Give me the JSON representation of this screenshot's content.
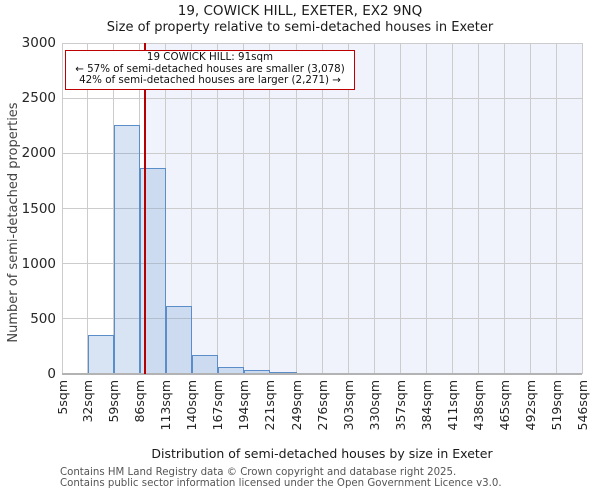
{
  "header": {
    "title": "19, COWICK HILL, EXETER, EX2 9NQ",
    "subtitle": "Size of property relative to semi-detached houses in Exeter"
  },
  "annotation": {
    "line1": "19 COWICK HILL: 91sqm",
    "line2": "← 57% of semi-detached houses are smaller (3,078)",
    "line3": "42% of semi-detached houses are larger (2,271) →"
  },
  "footer": {
    "line1": "Contains HM Land Registry data © Crown copyright and database right 2025.",
    "line2": "Contains public sector information licensed under the Open Government Licence v3.0."
  },
  "chart_data": {
    "type": "bar",
    "title": "19, COWICK HILL, EXETER, EX2 9NQ",
    "subtitle": "Size of property relative to semi-detached houses in Exeter",
    "xlabel": "Distribution of semi-detached houses by size in Exeter",
    "ylabel": "Number of semi-detached properties",
    "xlim": [
      5,
      546
    ],
    "ylim": [
      0,
      3000
    ],
    "grid": true,
    "x_tick_values": [
      5,
      32,
      59,
      86,
      113,
      140,
      167,
      194,
      221,
      249,
      276,
      303,
      330,
      357,
      384,
      411,
      438,
      465,
      492,
      519,
      546
    ],
    "x_tick_labels": [
      "5sqm",
      "32sqm",
      "59sqm",
      "86sqm",
      "113sqm",
      "140sqm",
      "167sqm",
      "194sqm",
      "221sqm",
      "249sqm",
      "276sqm",
      "303sqm",
      "330sqm",
      "357sqm",
      "384sqm",
      "411sqm",
      "438sqm",
      "465sqm",
      "492sqm",
      "519sqm",
      "546sqm"
    ],
    "y_ticks": [
      0,
      500,
      1000,
      1500,
      2000,
      2500,
      3000
    ],
    "bins": {
      "starts": [
        5,
        32,
        59,
        86,
        113,
        140,
        167,
        194,
        221,
        249,
        276,
        303
      ],
      "ends": [
        32,
        59,
        86,
        113,
        140,
        167,
        194,
        221,
        249,
        276,
        303,
        330
      ],
      "values": [
        5,
        355,
        2260,
        1870,
        620,
        175,
        65,
        35,
        18,
        10,
        8,
        5
      ]
    },
    "marker": {
      "label": "19 COWICK HILL",
      "value_sqm": 91,
      "smaller_pct": 57,
      "smaller_count": 3078,
      "larger_pct": 42,
      "larger_count": 2271
    },
    "colors": {
      "bar_fill": "#d8e4f3",
      "bar_edge": "#5b8ec9",
      "marker_line": "#b40000",
      "annotation_border": "#c00000",
      "highlight_bg": "#f0f3fb",
      "gridline": "#cccccc",
      "spine": "#b3b3b3"
    }
  }
}
